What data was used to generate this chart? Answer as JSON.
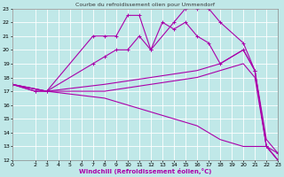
{
  "title": "Courbe du refroidissement olien pour Ummendorf",
  "xlabel": "Windchill (Refroidissement éolien,°C)",
  "bg_color": "#c0e8e8",
  "grid_color": "#aacccc",
  "line_color": "#aa00aa",
  "xlim": [
    0,
    23
  ],
  "ylim": [
    12,
    23
  ],
  "xticks": [
    0,
    2,
    3,
    4,
    5,
    6,
    7,
    8,
    9,
    10,
    11,
    12,
    13,
    14,
    15,
    16,
    17,
    18,
    19,
    20,
    21,
    22,
    23
  ],
  "yticks": [
    12,
    13,
    14,
    15,
    16,
    17,
    18,
    19,
    20,
    21,
    22,
    23
  ],
  "lines": [
    {
      "x": [
        0,
        2,
        3,
        7,
        8,
        9,
        10,
        11,
        12,
        14,
        15,
        16,
        17,
        18,
        20,
        21,
        22,
        23
      ],
      "y": [
        17.5,
        17,
        17,
        21.0,
        21.0,
        21.0,
        22.5,
        22.5,
        20.0,
        22.0,
        23.0,
        23.0,
        23.0,
        22.0,
        20.5,
        18.5,
        13.0,
        12.0
      ],
      "marker": "+"
    },
    {
      "x": [
        0,
        2,
        3,
        7,
        8,
        9,
        10,
        11,
        12,
        13,
        14,
        15,
        16,
        17,
        18,
        20,
        21,
        22,
        23
      ],
      "y": [
        17.5,
        17,
        17,
        19.0,
        19.5,
        20.0,
        20.0,
        21.0,
        20.0,
        22.0,
        21.5,
        22.0,
        21.0,
        20.5,
        19.0,
        20.0,
        18.5,
        13.0,
        12.5
      ],
      "marker": "+"
    },
    {
      "x": [
        0,
        3,
        8,
        12,
        16,
        18,
        20,
        21,
        22,
        23
      ],
      "y": [
        17.5,
        17,
        17.5,
        18.0,
        18.5,
        19.0,
        20.0,
        18.5,
        13.5,
        12.5
      ],
      "marker": null
    },
    {
      "x": [
        0,
        3,
        8,
        12,
        16,
        18,
        20,
        21,
        22,
        23
      ],
      "y": [
        17.5,
        17,
        17.0,
        17.5,
        18.0,
        18.5,
        19.0,
        18.0,
        13.0,
        12.0
      ],
      "marker": null
    },
    {
      "x": [
        0,
        3,
        8,
        12,
        16,
        18,
        20,
        22,
        23
      ],
      "y": [
        17.5,
        17,
        16.5,
        15.5,
        14.5,
        13.5,
        13.0,
        13.0,
        12.0
      ],
      "marker": null
    }
  ]
}
